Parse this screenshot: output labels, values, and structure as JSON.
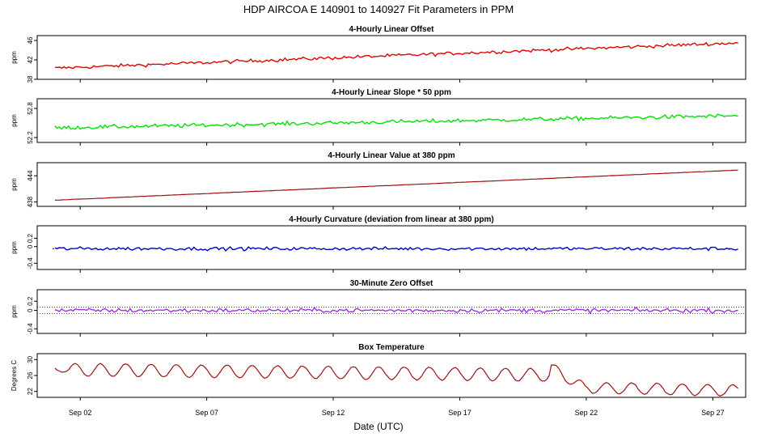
{
  "page_title": "HDP   AIRCOA E   140901 to 140927   Fit Parameters in PPM",
  "x_axis": {
    "label": "Date (UTC)",
    "range_days": [
      0.3,
      28.3
    ],
    "ticks": [
      {
        "day": 2,
        "label": "Sep 02"
      },
      {
        "day": 7,
        "label": "Sep 07"
      },
      {
        "day": 12,
        "label": "Sep 12"
      },
      {
        "day": 17,
        "label": "Sep 17"
      },
      {
        "day": 22,
        "label": "Sep 22"
      },
      {
        "day": 27,
        "label": "Sep 27"
      }
    ]
  },
  "chart_data": [
    {
      "type": "line",
      "title": "4-Hourly Linear Offset",
      "ylabel": "ppm",
      "ylim": [
        38,
        47
      ],
      "yticks": [
        "38",
        "42",
        "46"
      ],
      "color": "#e00000",
      "series": [
        {
          "name": "offset",
          "x_start": 1.0,
          "x_end": 28.0,
          "y_start": 40.3,
          "y_end": 45.5
        }
      ]
    },
    {
      "type": "line",
      "title": "4-Hourly Linear Slope * 50 ppm",
      "ylabel": "ppm",
      "ylim": [
        52.1,
        53.0
      ],
      "yticks": [
        "52.2",
        "52.8"
      ],
      "color": "#00e000",
      "series": [
        {
          "name": "slope",
          "x_start": 1.0,
          "x_end": 28.0,
          "y_start": 52.4,
          "y_end": 52.65
        }
      ]
    },
    {
      "type": "line",
      "title": "4-Hourly Linear Value at 380 ppm",
      "ylabel": "ppm",
      "ylim": [
        437,
        447
      ],
      "yticks": [
        "438",
        "444"
      ],
      "color": "#a01010",
      "series": [
        {
          "name": "value_380",
          "x_start": 1.0,
          "x_end": 28.0,
          "y_start": 438.4,
          "y_end": 445.3
        }
      ]
    },
    {
      "type": "line",
      "title": "4-Hourly Curvature (deviation from linear at 380 ppm)",
      "ylabel": "ppm",
      "ylim": [
        -0.55,
        0.5
      ],
      "yticks": [
        "-0.4",
        "0",
        "0.2"
      ],
      "color": "#0000c0",
      "series": [
        {
          "name": "curvature",
          "x_start": 1.0,
          "x_end": 28.0,
          "y_start": -0.05,
          "y_end": -0.05
        }
      ]
    },
    {
      "type": "line",
      "title": "30-Minute Zero Offset",
      "ylabel": "ppm",
      "ylim": [
        -0.5,
        0.45
      ],
      "yticks": [
        "-0.4",
        "0",
        "0.2"
      ],
      "reference_lines": [
        0.07,
        -0.07
      ],
      "color": "#a030e0",
      "series": [
        {
          "name": "zero_offset",
          "x_start": 1.0,
          "x_end": 28.0,
          "y_start": 0.0,
          "y_end": 0.0
        }
      ]
    },
    {
      "type": "line",
      "title": "Box Temperature",
      "ylabel": "Degrees C",
      "ylim": [
        20.5,
        31.5
      ],
      "yticks": [
        "22",
        "26",
        "30"
      ],
      "color": "#a01010",
      "series": [
        {
          "name": "box_temp",
          "x_start": 1.0,
          "x_end": 28.0,
          "y_start": 28,
          "y_end": 21
        }
      ]
    }
  ]
}
